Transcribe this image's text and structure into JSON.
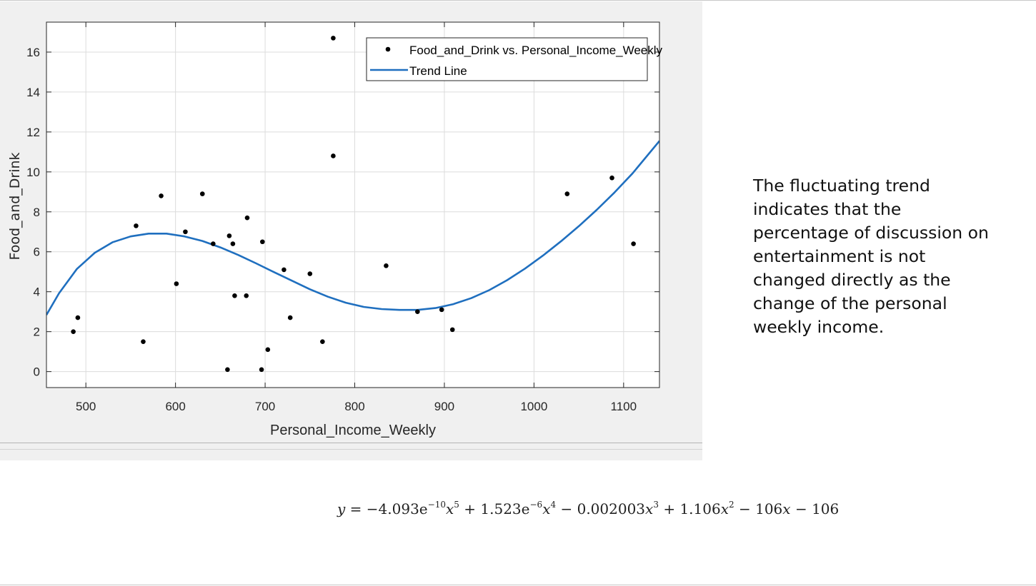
{
  "chart_data": {
    "type": "scatter",
    "xlabel": "Personal_Income_Weekly",
    "ylabel": "Food_and_Drink",
    "xlim": [
      456,
      1140
    ],
    "ylim": [
      -0.8,
      17.5
    ],
    "xticks": [
      500,
      600,
      700,
      800,
      900,
      1000,
      1100
    ],
    "yticks": [
      0,
      2,
      4,
      6,
      8,
      10,
      12,
      14,
      16
    ],
    "grid": true,
    "legend_position": "top-right",
    "series": [
      {
        "name": "Food_and_Drink vs. Personal_Income_Weekly",
        "kind": "scatter",
        "color": "#000000",
        "points": [
          [
            486,
            2.0
          ],
          [
            491,
            2.7
          ],
          [
            556,
            7.3
          ],
          [
            564,
            1.5
          ],
          [
            584,
            8.8
          ],
          [
            601,
            4.4
          ],
          [
            611,
            7.0
          ],
          [
            630,
            8.9
          ],
          [
            642,
            6.4
          ],
          [
            658,
            0.1
          ],
          [
            660,
            6.8
          ],
          [
            664,
            6.4
          ],
          [
            666,
            3.8
          ],
          [
            679,
            3.8
          ],
          [
            680,
            7.7
          ],
          [
            696,
            0.1
          ],
          [
            697,
            6.5
          ],
          [
            703,
            1.1
          ],
          [
            721,
            5.1
          ],
          [
            728,
            2.7
          ],
          [
            750,
            4.9
          ],
          [
            764,
            1.5
          ],
          [
            776,
            16.7
          ],
          [
            776,
            10.8
          ],
          [
            835,
            5.3
          ],
          [
            870,
            3.0
          ],
          [
            897,
            3.1
          ],
          [
            909,
            2.1
          ],
          [
            1037,
            8.9
          ],
          [
            1087,
            9.7
          ],
          [
            1111,
            6.4
          ]
        ]
      },
      {
        "name": "Trend Line",
        "kind": "line",
        "color": "#1f6fbf",
        "points": [
          [
            456,
            2.84
          ],
          [
            470,
            3.92
          ],
          [
            490,
            5.14
          ],
          [
            510,
            5.95
          ],
          [
            530,
            6.48
          ],
          [
            550,
            6.77
          ],
          [
            570,
            6.91
          ],
          [
            590,
            6.91
          ],
          [
            610,
            6.77
          ],
          [
            630,
            6.54
          ],
          [
            650,
            6.22
          ],
          [
            670,
            5.84
          ],
          [
            690,
            5.42
          ],
          [
            710,
            4.98
          ],
          [
            730,
            4.55
          ],
          [
            750,
            4.12
          ],
          [
            770,
            3.75
          ],
          [
            790,
            3.45
          ],
          [
            810,
            3.24
          ],
          [
            830,
            3.13
          ],
          [
            850,
            3.09
          ],
          [
            870,
            3.09
          ],
          [
            890,
            3.18
          ],
          [
            910,
            3.38
          ],
          [
            930,
            3.68
          ],
          [
            950,
            4.08
          ],
          [
            970,
            4.58
          ],
          [
            990,
            5.16
          ],
          [
            1010,
            5.81
          ],
          [
            1030,
            6.52
          ],
          [
            1050,
            7.28
          ],
          [
            1070,
            8.1
          ],
          [
            1090,
            8.98
          ],
          [
            1110,
            9.93
          ],
          [
            1140,
            11.55
          ]
        ]
      }
    ]
  },
  "annotation_text": "The fluctuating trend indicates that the percentage of discussion on entertainment is not changed directly as the change of the personal weekly income.",
  "equation": {
    "lhs": "y",
    "eq": "=",
    "t1_coef": "−4.093e",
    "t1_exp": "−10",
    "t1_var": "x",
    "t1_pow": "5",
    "op1": "+",
    "t2_coef": "1.523e",
    "t2_exp": "−6",
    "t2_var": "x",
    "t2_pow": "4",
    "op2": "−",
    "t3_coef": "0.002003",
    "t3_var": "x",
    "t3_pow": "3",
    "op3": "+",
    "t4_coef": "1.106",
    "t4_var": "x",
    "t4_pow": "2",
    "op4": "−",
    "t5_coef": "106",
    "t5_var": "x",
    "op5": "−",
    "t6": "106"
  }
}
